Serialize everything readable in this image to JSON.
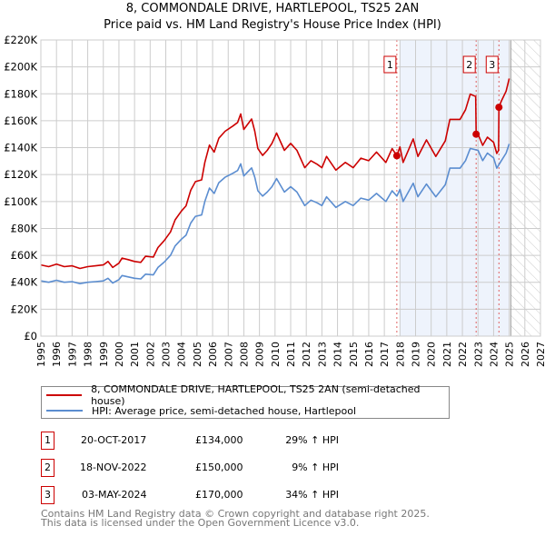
{
  "title_line1": "8, COMMONDALE DRIVE, HARTLEPOOL, TS25 2AN",
  "title_line2": "Price paid vs. HM Land Registry's House Price Index (HPI)",
  "chart_data": {
    "type": "line",
    "title": "8, COMMONDALE DRIVE, HARTLEPOOL, TS25 2AN - Price paid vs. HM Land Registry's House Price Index (HPI)",
    "xlim": [
      1995,
      2027
    ],
    "ylim": [
      0,
      220000
    ],
    "x_ticks": [
      "1995",
      "1996",
      "1997",
      "1998",
      "1999",
      "2000",
      "2001",
      "2002",
      "2003",
      "2004",
      "2005",
      "2006",
      "2007",
      "2008",
      "2009",
      "2010",
      "2011",
      "2012",
      "2013",
      "2014",
      "2015",
      "2016",
      "2017",
      "2018",
      "2019",
      "2020",
      "2021",
      "2022",
      "2023",
      "2024",
      "2025",
      "2026",
      "2027"
    ],
    "y_ticks": [
      {
        "value": 0,
        "label": "£0"
      },
      {
        "value": 20000,
        "label": "£20K"
      },
      {
        "value": 40000,
        "label": "£40K"
      },
      {
        "value": 60000,
        "label": "£60K"
      },
      {
        "value": 80000,
        "label": "£80K"
      },
      {
        "value": 100000,
        "label": "£100K"
      },
      {
        "value": 120000,
        "label": "£120K"
      },
      {
        "value": 140000,
        "label": "£140K"
      },
      {
        "value": 160000,
        "label": "£160K"
      },
      {
        "value": 180000,
        "label": "£180K"
      },
      {
        "value": 200000,
        "label": "£200K"
      },
      {
        "value": 220000,
        "label": "£220K"
      }
    ],
    "grid": true,
    "shaded_range": [
      2018.0,
      2025.0
    ],
    "hatched_from": 2025.1,
    "series": [
      {
        "name": "8, COMMONDALE DRIVE, HARTLEPOOL, TS25 2AN (semi-detached house)",
        "color": "#cc0000",
        "points": [
          [
            1995.0,
            52.9
          ],
          [
            1995.5,
            51.6
          ],
          [
            1996.0,
            53.5
          ],
          [
            1996.5,
            51.6
          ],
          [
            1997.0,
            52.2
          ],
          [
            1997.5,
            50.3
          ],
          [
            1998.0,
            51.6
          ],
          [
            1998.5,
            52.2
          ],
          [
            1999.0,
            52.9
          ],
          [
            1999.3,
            55.5
          ],
          [
            1999.6,
            51
          ],
          [
            2000.0,
            54.2
          ],
          [
            2000.2,
            58
          ],
          [
            2000.6,
            56.8
          ],
          [
            2001.0,
            55.5
          ],
          [
            2001.4,
            54.8
          ],
          [
            2001.7,
            59.3
          ],
          [
            2002.2,
            58.7
          ],
          [
            2002.5,
            65.8
          ],
          [
            2002.9,
            71
          ],
          [
            2003.3,
            77.4
          ],
          [
            2003.6,
            86.4
          ],
          [
            2004.0,
            92.9
          ],
          [
            2004.3,
            96.8
          ],
          [
            2004.6,
            108.4
          ],
          [
            2004.9,
            114.8
          ],
          [
            2005.3,
            116.1
          ],
          [
            2005.5,
            129
          ],
          [
            2005.8,
            141.9
          ],
          [
            2006.1,
            136.7
          ],
          [
            2006.4,
            147
          ],
          [
            2006.8,
            152.2
          ],
          [
            2007.3,
            156.1
          ],
          [
            2007.6,
            158.7
          ],
          [
            2007.8,
            165.1
          ],
          [
            2008.0,
            153.5
          ],
          [
            2008.5,
            161.3
          ],
          [
            2008.7,
            152.2
          ],
          [
            2008.9,
            139.3
          ],
          [
            2009.2,
            134.2
          ],
          [
            2009.5,
            138
          ],
          [
            2009.8,
            143.2
          ],
          [
            2010.1,
            150.9
          ],
          [
            2010.6,
            138
          ],
          [
            2011.0,
            143.2
          ],
          [
            2011.4,
            138
          ],
          [
            2011.9,
            125.1
          ],
          [
            2012.3,
            130.3
          ],
          [
            2012.7,
            127.7
          ],
          [
            2013.0,
            125.1
          ],
          [
            2013.3,
            133.5
          ],
          [
            2013.9,
            123.3
          ],
          [
            2014.5,
            129
          ],
          [
            2015.0,
            125.1
          ],
          [
            2015.5,
            132.2
          ],
          [
            2016.0,
            130.3
          ],
          [
            2016.5,
            136.7
          ],
          [
            2017.1,
            129
          ],
          [
            2017.5,
            139.3
          ],
          [
            2017.8,
            134
          ],
          [
            2018.0,
            140.6
          ],
          [
            2018.2,
            129
          ],
          [
            2018.85,
            146.5
          ],
          [
            2019.15,
            133.5
          ],
          [
            2019.7,
            145.8
          ],
          [
            2020.3,
            133.5
          ],
          [
            2020.9,
            145
          ],
          [
            2021.2,
            161
          ],
          [
            2021.85,
            161
          ],
          [
            2022.2,
            168.2
          ],
          [
            2022.5,
            179.8
          ],
          [
            2022.85,
            178
          ],
          [
            2022.88,
            150
          ],
          [
            2023.0,
            150
          ],
          [
            2023.3,
            141.7
          ],
          [
            2023.6,
            147.8
          ],
          [
            2024.0,
            144
          ],
          [
            2024.2,
            135.7
          ],
          [
            2024.32,
            138
          ],
          [
            2024.34,
            170
          ],
          [
            2024.5,
            174.7
          ],
          [
            2024.8,
            182
          ],
          [
            2025.0,
            191.4
          ]
        ]
      },
      {
        "name": "HPI: Average price, semi-detached house, Hartlepool",
        "color": "#5b8dd0",
        "points": [
          [
            1995.0,
            41
          ],
          [
            1995.5,
            40
          ],
          [
            1996.0,
            41.5
          ],
          [
            1996.5,
            40
          ],
          [
            1997.0,
            40.5
          ],
          [
            1997.5,
            39
          ],
          [
            1998.0,
            40
          ],
          [
            1998.5,
            40.5
          ],
          [
            1999.0,
            41
          ],
          [
            1999.3,
            43
          ],
          [
            1999.6,
            39.5
          ],
          [
            2000.0,
            42
          ],
          [
            2000.2,
            45
          ],
          [
            2000.6,
            44
          ],
          [
            2001.0,
            43
          ],
          [
            2001.4,
            42.5
          ],
          [
            2001.7,
            46
          ],
          [
            2002.2,
            45.5
          ],
          [
            2002.5,
            51
          ],
          [
            2002.9,
            55
          ],
          [
            2003.3,
            60
          ],
          [
            2003.6,
            67
          ],
          [
            2004.0,
            72
          ],
          [
            2004.3,
            75
          ],
          [
            2004.6,
            84
          ],
          [
            2004.9,
            89
          ],
          [
            2005.3,
            90
          ],
          [
            2005.5,
            100
          ],
          [
            2005.8,
            110
          ],
          [
            2006.1,
            106
          ],
          [
            2006.4,
            114
          ],
          [
            2006.8,
            118
          ],
          [
            2007.3,
            121
          ],
          [
            2007.6,
            123
          ],
          [
            2007.8,
            128
          ],
          [
            2008.0,
            119
          ],
          [
            2008.5,
            125
          ],
          [
            2008.7,
            118
          ],
          [
            2008.9,
            108
          ],
          [
            2009.2,
            104
          ],
          [
            2009.5,
            107
          ],
          [
            2009.8,
            111
          ],
          [
            2010.1,
            117
          ],
          [
            2010.6,
            107
          ],
          [
            2011.0,
            111
          ],
          [
            2011.4,
            107
          ],
          [
            2011.9,
            97
          ],
          [
            2012.3,
            101
          ],
          [
            2012.7,
            99
          ],
          [
            2013.0,
            97
          ],
          [
            2013.3,
            103.5
          ],
          [
            2013.9,
            95.6
          ],
          [
            2014.5,
            100
          ],
          [
            2015.0,
            97
          ],
          [
            2015.5,
            102.5
          ],
          [
            2016.0,
            101
          ],
          [
            2016.5,
            106
          ],
          [
            2017.1,
            100
          ],
          [
            2017.5,
            108
          ],
          [
            2017.8,
            104
          ],
          [
            2018.0,
            109
          ],
          [
            2018.2,
            100
          ],
          [
            2018.85,
            113.6
          ],
          [
            2019.15,
            103.5
          ],
          [
            2019.7,
            113
          ],
          [
            2020.3,
            103.5
          ],
          [
            2020.9,
            112.4
          ],
          [
            2021.2,
            124.8
          ],
          [
            2021.85,
            124.8
          ],
          [
            2022.2,
            130.4
          ],
          [
            2022.5,
            139.4
          ],
          [
            2023.0,
            138
          ],
          [
            2023.3,
            130.4
          ],
          [
            2023.6,
            136
          ],
          [
            2024.0,
            132.5
          ],
          [
            2024.2,
            124.8
          ],
          [
            2024.5,
            130.4
          ],
          [
            2024.8,
            136
          ],
          [
            2025.0,
            142.8
          ]
        ]
      }
    ],
    "sales": [
      {
        "label": "1",
        "year": 2017.8,
        "price": 134000
      },
      {
        "label": "2",
        "year": 2022.88,
        "price": 150000
      },
      {
        "label": "3",
        "year": 2024.34,
        "price": 170000
      }
    ]
  },
  "legend": {
    "property": "8, COMMONDALE DRIVE, HARTLEPOOL, TS25 2AN (semi-detached house)",
    "hpi": "HPI: Average price, semi-detached house, Hartlepool"
  },
  "transactions": [
    {
      "num": "1",
      "date": "20-OCT-2017",
      "price": "£134,000",
      "delta": "29% ↑ HPI"
    },
    {
      "num": "2",
      "date": "18-NOV-2022",
      "price": "£150,000",
      "delta": "9% ↑ HPI"
    },
    {
      "num": "3",
      "date": "03-MAY-2024",
      "price": "£170,000",
      "delta": "34% ↑ HPI"
    }
  ],
  "footer_line1": "Contains HM Land Registry data © Crown copyright and database right 2025.",
  "footer_line2": "This data is licensed under the Open Government Licence v3.0."
}
